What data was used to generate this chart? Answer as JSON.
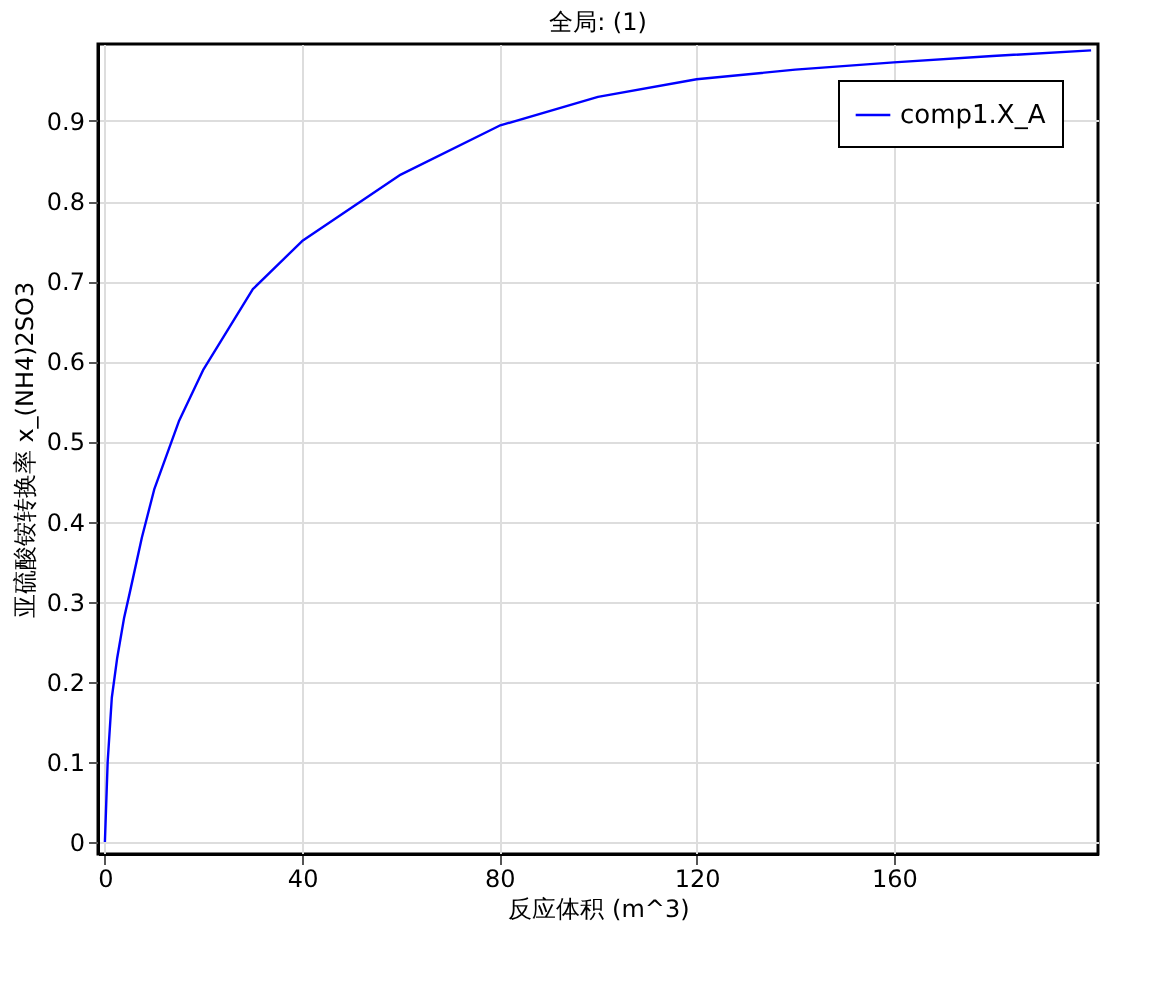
{
  "chart_data": {
    "type": "line",
    "title": "全局: (1)",
    "xlabel": "反应体积 (m^3)",
    "ylabel": "亚硫酸铵转换率 x_(NH4)2SO3",
    "x": [
      0,
      0.56,
      1.4,
      2.5,
      3.9,
      5,
      7.5,
      10,
      15,
      20,
      30,
      40,
      60,
      80,
      100,
      120,
      140,
      160,
      180,
      200
    ],
    "series": [
      {
        "name": "comp1.X_A",
        "color": "#0000ff",
        "values": [
          0,
          0.1,
          0.18,
          0.23,
          0.28,
          0.31,
          0.38,
          0.44,
          0.525,
          0.59,
          0.69,
          0.75,
          0.833,
          0.894,
          0.93,
          0.952,
          0.964,
          0.973,
          0.981,
          0.988
        ]
      }
    ],
    "xlim": [
      -1.4,
      201.4
    ],
    "xticks": [
      0,
      40,
      80,
      120,
      160
    ],
    "ylim": [
      -0.015,
      0.996
    ],
    "yticks": [
      0,
      0.1,
      0.2,
      0.3,
      0.4,
      0.5,
      0.6,
      0.7,
      0.8,
      0.9
    ],
    "grid": true,
    "legend": "top right",
    "marker": "none",
    "line_style": "solid"
  }
}
